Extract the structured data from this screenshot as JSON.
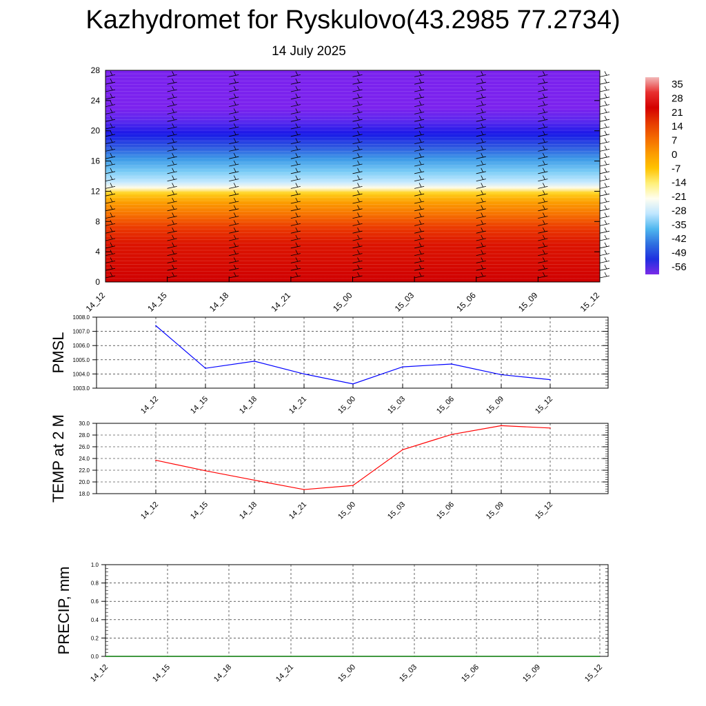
{
  "title": "Kazhydromet for Ryskulovo(43.2985 77.2734)",
  "date": "14 July 2025",
  "chart_data": [
    {
      "type": "heatmap",
      "name": "vertical temperature cross-section",
      "x_ticks": [
        "14_12",
        "14_15",
        "14_18",
        "14_21",
        "15_00",
        "15_03",
        "15_06",
        "15_09",
        "15_12"
      ],
      "y_ticks": [
        0,
        4,
        8,
        12,
        16,
        20,
        24,
        28
      ],
      "ylim": [
        0,
        28
      ],
      "colorbar_labels": [
        35,
        28,
        21,
        14,
        7,
        0,
        -7,
        -14,
        -21,
        -28,
        -35,
        -42,
        -49,
        -56
      ],
      "colorbar_colors": [
        "#f2b8b8",
        "#e83030",
        "#d40000",
        "#e63a00",
        "#f46a00",
        "#fb9a00",
        "#ffc300",
        "#fff07a",
        "#fffef0",
        "#bfe6ff",
        "#4fb7ef",
        "#2f6fe0",
        "#1f2fe0",
        "#7a2be8"
      ],
      "colors": {
        "low": "#d40000",
        "high": "#7b22ee"
      },
      "wind_barbs": true
    },
    {
      "type": "line",
      "ylabel": "PMSL",
      "x_ticks": [
        "14_12",
        "14_15",
        "14_18",
        "14_21",
        "15_00",
        "15_03",
        "15_06",
        "15_09",
        "15_12"
      ],
      "y_ticks": [
        "1003.0",
        "1004.0",
        "1005.0",
        "1006.0",
        "1007.0",
        "1008.0"
      ],
      "ylim": [
        1003,
        1008
      ],
      "values": [
        1007.4,
        1004.4,
        1004.9,
        1004.0,
        1003.3,
        1004.5,
        1004.7,
        1003.95,
        1003.6
      ],
      "color": "#0000ff",
      "grid": true
    },
    {
      "type": "line",
      "ylabel": "TEMP at 2 M",
      "x_ticks": [
        "14_12",
        "14_15",
        "14_18",
        "14_21",
        "15_00",
        "15_03",
        "15_06",
        "15_09",
        "15_12"
      ],
      "y_ticks": [
        "18.0",
        "20.0",
        "22.0",
        "24.0",
        "26.0",
        "28.0",
        "30.0"
      ],
      "ylim": [
        18,
        30
      ],
      "values": [
        23.7,
        21.9,
        20.3,
        18.7,
        19.4,
        25.5,
        28.1,
        29.6,
        29.2
      ],
      "color": "#ff0000",
      "grid": true
    },
    {
      "type": "line",
      "ylabel": "PRECIP, mm",
      "x_ticks": [
        "14_12",
        "14_15",
        "14_18",
        "14_21",
        "15_00",
        "15_03",
        "15_06",
        "15_09",
        "15_12"
      ],
      "y_ticks": [
        "0.0",
        "0.2",
        "0.4",
        "0.6",
        "0.8",
        "1.0"
      ],
      "ylim": [
        0,
        1
      ],
      "values": [
        0,
        0,
        0,
        0,
        0,
        0,
        0,
        0,
        0
      ],
      "color": "#007700",
      "grid": true
    }
  ]
}
